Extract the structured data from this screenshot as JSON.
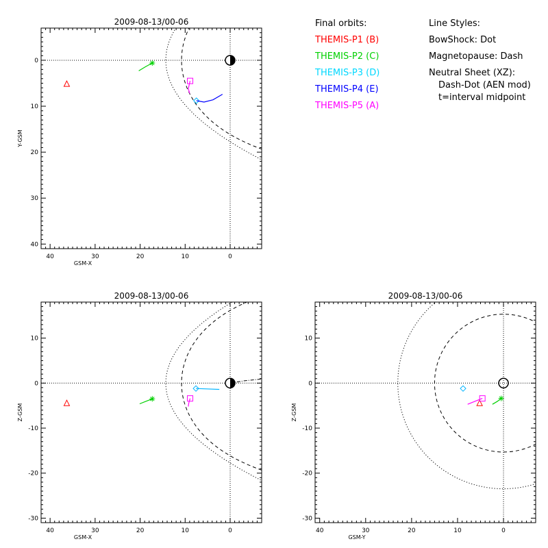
{
  "chart_data": [
    {
      "type": "scatter",
      "title": "2009-08-13/00-06",
      "xlabel": "GSM-X",
      "ylabel": "Y-GSM",
      "xlim": [
        42,
        -7
      ],
      "ylim": [
        41,
        -7
      ],
      "xticks": [
        "40",
        "30",
        "20",
        "10",
        "0"
      ],
      "yticks": [
        "0",
        "10",
        "20",
        "30",
        "40"
      ],
      "probes": [
        {
          "marker": "triangle",
          "color": "#ff0000",
          "x": 36.3,
          "y": 5.1
        },
        {
          "marker": "asterisk",
          "color": "#00d000",
          "x": 17.3,
          "y": 0.6,
          "track": [
            [
              20.3,
              2.3
            ],
            [
              18.8,
              1.4
            ],
            [
              17.3,
              0.6
            ]
          ]
        },
        {
          "marker": "diamond",
          "color": "#00b4ff",
          "x": 7.5,
          "y": 8.8
        },
        {
          "marker": "square",
          "color": "#ff00ff",
          "x": 8.9,
          "y": 4.5,
          "track": [
            [
              8.9,
              4.5
            ],
            [
              9.3,
              6.2
            ],
            [
              9.0,
              7.2
            ]
          ]
        },
        {
          "track": [
            [
              7.5,
              8.8
            ],
            [
              5.8,
              9.1
            ],
            [
              3.8,
              8.6
            ],
            [
              1.7,
              7.4
            ]
          ],
          "color": "#0000ff"
        }
      ]
    },
    {
      "type": "scatter",
      "title": "2009-08-13/00-06",
      "xlabel": "GSM-X",
      "ylabel": "Z-GSM",
      "xlim": [
        42,
        -7
      ],
      "ylim": [
        -31,
        18
      ],
      "xticks": [
        "40",
        "30",
        "20",
        "10",
        "0"
      ],
      "yticks": [
        "10",
        "0",
        "-10",
        "-20",
        "-30"
      ],
      "probes": [
        {
          "marker": "triangle",
          "color": "#ff0000",
          "x": 36.3,
          "y": -4.4
        },
        {
          "marker": "asterisk",
          "color": "#00d000",
          "x": 17.3,
          "y": -3.5,
          "track": [
            [
              20.1,
              -4.6
            ],
            [
              18.6,
              -4.0
            ],
            [
              17.3,
              -3.5
            ]
          ]
        },
        {
          "marker": "diamond",
          "color": "#00b4ff",
          "x": 7.6,
          "y": -1.2,
          "track": [
            [
              7.6,
              -1.2
            ],
            [
              5.0,
              -1.3
            ],
            [
              2.4,
              -1.4
            ]
          ]
        },
        {
          "marker": "square",
          "color": "#ff00ff",
          "x": 8.9,
          "y": -3.4,
          "track": [
            [
              8.9,
              -3.4
            ],
            [
              9.2,
              -4.5
            ],
            [
              9.3,
              -5.2
            ]
          ]
        }
      ]
    },
    {
      "type": "scatter",
      "title": "2009-08-13/00-06",
      "xlabel": "GSM-Y",
      "ylabel": "Z-GSM",
      "xlim": [
        41,
        -7
      ],
      "ylim": [
        -31,
        18
      ],
      "xticks": [
        "40",
        "30",
        "20",
        "10",
        "0"
      ],
      "yticks": [
        "10",
        "0",
        "-10",
        "-20",
        "-30"
      ],
      "probes": [
        {
          "marker": "triangle",
          "color": "#ff0000",
          "x": 5.2,
          "y": -4.4
        },
        {
          "marker": "asterisk",
          "color": "#00d000",
          "x": 0.5,
          "y": -3.4,
          "track": [
            [
              2.4,
              -4.7
            ],
            [
              1.4,
              -4.1
            ],
            [
              0.5,
              -3.4
            ]
          ]
        },
        {
          "marker": "diamond",
          "color": "#00b4ff",
          "x": 8.8,
          "y": -1.2
        },
        {
          "marker": "square",
          "color": "#ff00ff",
          "x": 4.6,
          "y": -3.4,
          "track": [
            [
              4.6,
              -3.4
            ],
            [
              6.1,
              -4.0
            ],
            [
              7.8,
              -4.7
            ]
          ]
        }
      ]
    }
  ],
  "legend": {
    "heading": "Final orbits:",
    "items": [
      {
        "label": "THEMIS-P1 (B)",
        "color": "#ff0000"
      },
      {
        "label": "THEMIS-P2 (C)",
        "color": "#00d000"
      },
      {
        "label": "THEMIS-P3 (D)",
        "color": "#00d8ff"
      },
      {
        "label": "THEMIS-P4 (E)",
        "color": "#0000ff"
      },
      {
        "label": "THEMIS-P5 (A)",
        "color": "#ff00ff"
      }
    ]
  },
  "styles": {
    "heading": "Line Styles:",
    "bowshock": "BowShock: Dot",
    "magnetopause": "Magnetopause: Dash",
    "neutral": "Neutral Sheet (XZ):",
    "neutral_line1": "Dash-Dot (AEN mod)",
    "neutral_line2": "t=interval midpoint"
  }
}
